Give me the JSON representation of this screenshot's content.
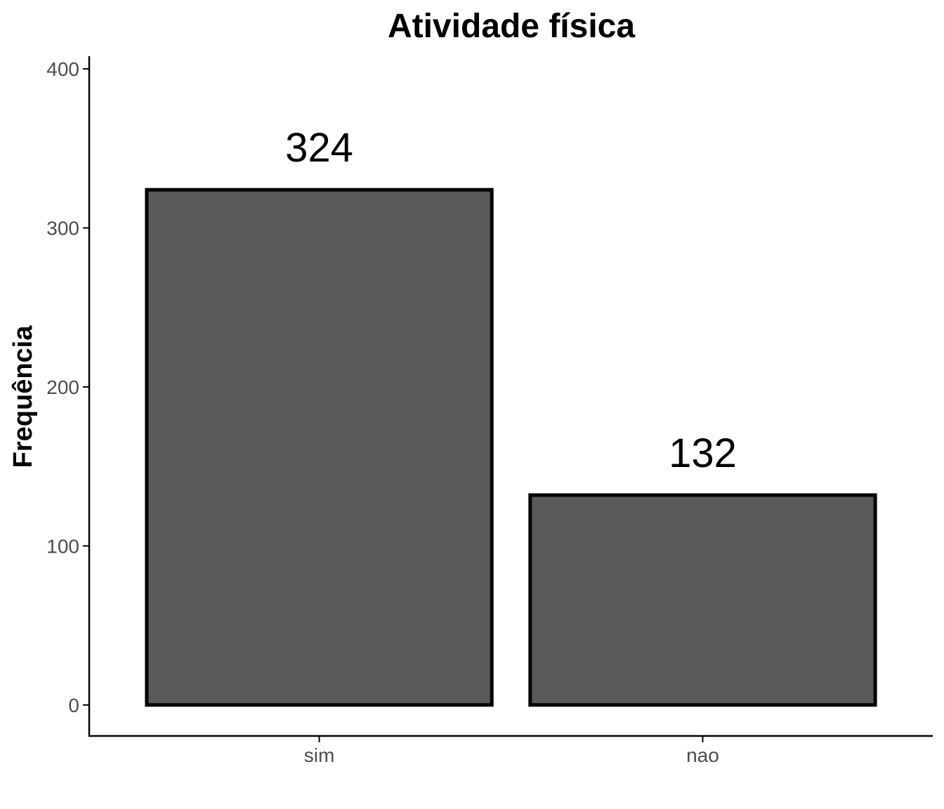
{
  "chart_data": {
    "type": "bar",
    "title": "Atividade física",
    "xlabel": "",
    "ylabel": "Frequência",
    "categories": [
      "sim",
      "nao"
    ],
    "values": [
      324,
      132
    ],
    "data_labels": [
      "324",
      "132"
    ],
    "yticks": [
      0,
      100,
      200,
      300,
      400
    ],
    "ytick_labels": [
      "0",
      "100",
      "200",
      "300",
      "400"
    ],
    "ylim": [
      -19.5,
      408
    ],
    "grid": false,
    "legend": "none",
    "colors": {
      "bar_fill": "#595959",
      "bar_stroke": "#000000"
    }
  }
}
